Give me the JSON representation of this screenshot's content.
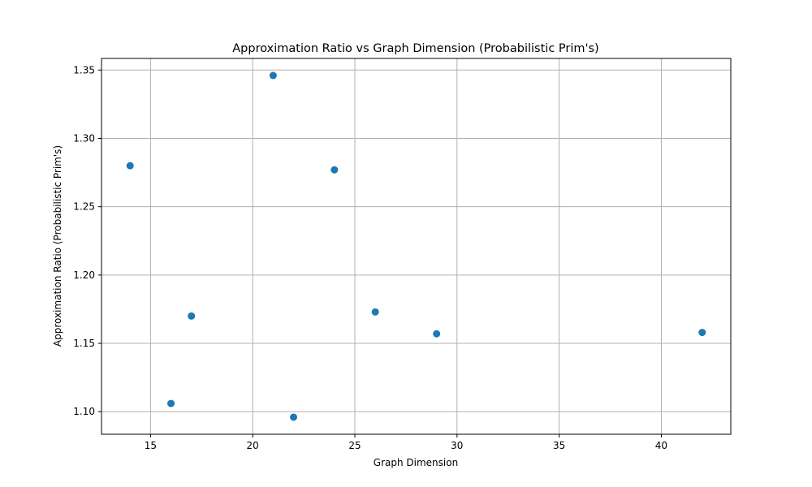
{
  "chart_data": {
    "type": "scatter",
    "title": "Approximation Ratio vs Graph Dimension (Probabilistic Prim's)",
    "xlabel": "Graph Dimension",
    "ylabel": "Approximation Ratio (Probabilistic Prim's)",
    "xlim": [
      12.6,
      43.4
    ],
    "ylim": [
      1.0835,
      1.3585
    ],
    "xticks": [
      15,
      20,
      25,
      30,
      35,
      40
    ],
    "yticks": [
      1.1,
      1.15,
      1.2,
      1.25,
      1.3,
      1.35
    ],
    "xtick_labels": [
      "15",
      "20",
      "25",
      "30",
      "35",
      "40"
    ],
    "ytick_labels": [
      "1.10",
      "1.15",
      "1.20",
      "1.25",
      "1.30",
      "1.35"
    ],
    "grid": true,
    "marker_color": "#1f77b4",
    "points": [
      {
        "x": 14,
        "y": 1.28
      },
      {
        "x": 16,
        "y": 1.106
      },
      {
        "x": 17,
        "y": 1.17
      },
      {
        "x": 21,
        "y": 1.346
      },
      {
        "x": 22,
        "y": 1.096
      },
      {
        "x": 24,
        "y": 1.277
      },
      {
        "x": 26,
        "y": 1.173
      },
      {
        "x": 29,
        "y": 1.157
      },
      {
        "x": 42,
        "y": 1.158
      }
    ]
  }
}
